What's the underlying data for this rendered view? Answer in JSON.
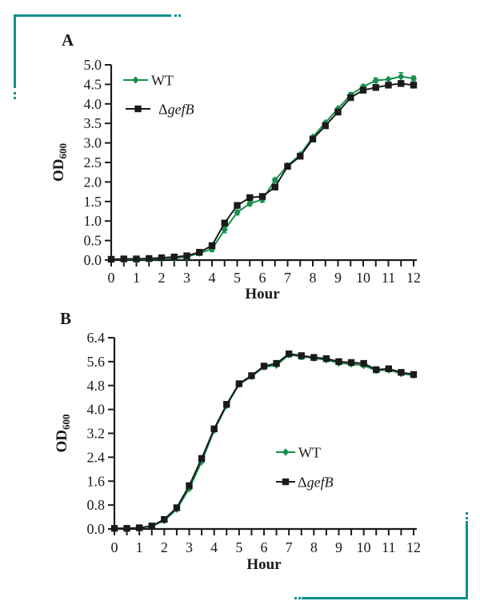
{
  "figure": {
    "background": "#ffffff",
    "accent_color": "#0e8f8f",
    "ink_color": "#1a1a1a"
  },
  "decorations": {
    "top_left_bracket": "corner frame line with dotted ends",
    "bottom_right_bracket": "corner frame line with dotted ends"
  },
  "chart_data": [
    {
      "type": "line",
      "panel_label": "A",
      "xlabel": "Hour",
      "ylabel": "OD",
      "ylabel_subscript": "600",
      "xlim": [
        0,
        12
      ],
      "ylim": [
        0,
        5.0
      ],
      "grid": false,
      "legend_position": "inside-top-left",
      "xtick_minor_step": 0.5,
      "xtick_labels": [
        "0",
        "1",
        "2",
        "3",
        "4",
        "5",
        "6",
        "7",
        "8",
        "9",
        "10",
        "11",
        "12"
      ],
      "ytick_values": [
        0,
        0.5,
        1.0,
        1.5,
        2.0,
        2.5,
        3.0,
        3.5,
        4.0,
        4.5,
        5.0
      ],
      "ytick_labels": [
        "0.0",
        "0.5",
        "1.0",
        "1.5",
        "2.0",
        "2.5",
        "3.0",
        "3.5",
        "4.0",
        "4.5",
        "5.0"
      ],
      "x": [
        0,
        0.5,
        1,
        1.5,
        2,
        2.5,
        3,
        3.5,
        4,
        4.5,
        5,
        5.5,
        6,
        6.5,
        7,
        7.5,
        8,
        8.5,
        9,
        9.5,
        10,
        10.5,
        11,
        11.5,
        12
      ],
      "series": [
        {
          "label": "WT",
          "label_italic": "",
          "color": "#16904a",
          "marker": "diamond",
          "values": [
            0.02,
            0.02,
            0.02,
            0.03,
            0.04,
            0.05,
            0.08,
            0.18,
            0.28,
            0.78,
            1.22,
            1.45,
            1.55,
            2.05,
            2.42,
            2.7,
            3.15,
            3.52,
            3.88,
            4.23,
            4.44,
            4.6,
            4.63,
            4.7,
            4.65
          ],
          "errors": [
            0,
            0,
            0,
            0,
            0,
            0,
            0,
            0.06,
            0.06,
            0.08,
            0.06,
            0.06,
            0.07,
            0.05,
            0.05,
            0,
            0,
            0,
            0,
            0.06,
            0.05,
            0.06,
            0,
            0.1,
            0.06
          ]
        },
        {
          "label": "Δ",
          "label_italic": "gefB",
          "color": "#1a1a1a",
          "marker": "square",
          "values": [
            0.02,
            0.03,
            0.03,
            0.04,
            0.06,
            0.08,
            0.11,
            0.2,
            0.37,
            0.95,
            1.4,
            1.6,
            1.63,
            1.87,
            2.4,
            2.66,
            3.1,
            3.44,
            3.79,
            4.16,
            4.35,
            4.42,
            4.48,
            4.52,
            4.48
          ],
          "errors": [
            0,
            0,
            0,
            0,
            0,
            0,
            0,
            0,
            0,
            0,
            0,
            0,
            0,
            0,
            0,
            0,
            0,
            0,
            0,
            0,
            0,
            0,
            0,
            0,
            0
          ]
        }
      ]
    },
    {
      "type": "line",
      "panel_label": "B",
      "xlabel": "Hour",
      "ylabel": "OD",
      "ylabel_subscript": "600",
      "xlim": [
        0,
        12
      ],
      "ylim": [
        0,
        6.4
      ],
      "grid": false,
      "legend_position": "inside-middle-right",
      "xtick_minor_step": 0.5,
      "xtick_labels": [
        "0",
        "1",
        "2",
        "3",
        "4",
        "5",
        "6",
        "7",
        "8",
        "9",
        "10",
        "11",
        "12"
      ],
      "ytick_values": [
        0,
        0.8,
        1.6,
        2.4,
        3.2,
        4.0,
        4.8,
        5.6,
        6.4
      ],
      "ytick_labels": [
        "0.0",
        "0.8",
        "1.6",
        "2.4",
        "3.2",
        "4.0",
        "4.8",
        "5.6",
        "6.4"
      ],
      "x": [
        0,
        0.5,
        1,
        1.5,
        2,
        2.5,
        3,
        3.5,
        4,
        4.5,
        5,
        5.5,
        6,
        6.5,
        7,
        7.5,
        8,
        8.5,
        9,
        9.5,
        10,
        10.5,
        11,
        11.5,
        12
      ],
      "series": [
        {
          "label": "WT",
          "label_italic": "",
          "color": "#16904a",
          "marker": "diamond",
          "values": [
            0.02,
            0.02,
            0.04,
            0.09,
            0.28,
            0.66,
            1.35,
            2.25,
            3.3,
            4.13,
            4.84,
            5.1,
            5.42,
            5.48,
            5.83,
            5.77,
            5.71,
            5.66,
            5.55,
            5.52,
            5.47,
            5.3,
            5.32,
            5.2,
            5.14
          ],
          "errors": [
            0,
            0,
            0,
            0,
            0,
            0,
            0.05,
            0,
            0,
            0,
            0,
            0,
            0,
            0,
            0,
            0.09,
            0,
            0,
            0,
            0,
            0.05,
            0,
            0,
            0,
            0
          ]
        },
        {
          "label": "Δ",
          "label_italic": "gefB",
          "color": "#1a1a1a",
          "marker": "square",
          "values": [
            0.02,
            0.02,
            0.04,
            0.1,
            0.32,
            0.71,
            1.45,
            2.36,
            3.35,
            4.17,
            4.86,
            5.13,
            5.45,
            5.54,
            5.86,
            5.8,
            5.74,
            5.7,
            5.6,
            5.57,
            5.54,
            5.33,
            5.36,
            5.24,
            5.17
          ],
          "errors": [
            0,
            0,
            0,
            0,
            0,
            0,
            0,
            0,
            0,
            0,
            0,
            0,
            0,
            0,
            0,
            0,
            0,
            0,
            0,
            0,
            0,
            0,
            0,
            0,
            0
          ]
        }
      ]
    }
  ]
}
